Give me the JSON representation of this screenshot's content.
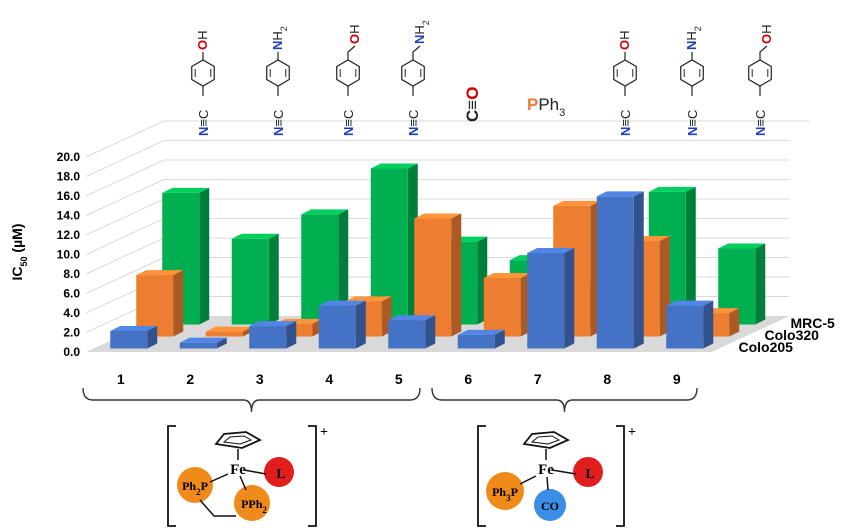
{
  "chart_data": {
    "type": "bar",
    "subtype": "3d-grouped",
    "ylabel": "IC50 (µM)",
    "ylabel_main": "IC",
    "ylabel_sub": "50",
    "ylabel_unit": " (µM)",
    "ylim": [
      0,
      20
    ],
    "yticks": [
      "0.0",
      "2.0",
      "4.0",
      "6.0",
      "8.0",
      "10.0",
      "12.0",
      "14.0",
      "16.0",
      "18.0",
      "20.0"
    ],
    "categories": [
      "1",
      "2",
      "3",
      "4",
      "5",
      "6",
      "7",
      "8",
      "9"
    ],
    "series": [
      {
        "name": "Colo205",
        "color": "#4472C4",
        "values": [
          1.8,
          0.6,
          2.3,
          4.4,
          2.9,
          1.4,
          9.8,
          15.6,
          4.4
        ]
      },
      {
        "name": "Colo320",
        "color": "#ED7D31",
        "values": [
          6.3,
          0.5,
          1.3,
          3.6,
          12.1,
          6.0,
          13.4,
          9.8,
          2.4
        ]
      },
      {
        "name": "MRC-5",
        "color": "#00B050",
        "values": [
          13.5,
          8.8,
          11.3,
          16.0,
          8.5,
          6.6,
          3.6,
          13.6,
          7.8
        ]
      }
    ],
    "groups": [
      {
        "label_top": "Fe",
        "ligand": "L",
        "charge": "+",
        "phos": "Ph2P",
        "phos2": "PPh2",
        "categories": [
          "1",
          "2",
          "3",
          "4",
          "5"
        ]
      },
      {
        "label_top": "Fe",
        "ligand": "L",
        "charge": "+",
        "phos": "Ph3P",
        "co": "CO",
        "categories": [
          "6",
          "7",
          "8",
          "9"
        ]
      }
    ],
    "ligands": [
      {
        "kind": "phenol-nitrile",
        "top": "OH"
      },
      {
        "kind": "aniline-nitrile",
        "top": "NH2"
      },
      {
        "kind": "benzylalcohol-nitrile",
        "top": "OH"
      },
      {
        "kind": "benzylamine-nitrile",
        "top": "NH2"
      },
      {
        "kind": "carbonyl",
        "text": "C≡O"
      },
      {
        "kind": "phosphine",
        "text": "PPh3"
      },
      {
        "kind": "phenol-nitrile",
        "top": "OH"
      },
      {
        "kind": "aniline-nitrile",
        "top": "NH2"
      },
      {
        "kind": "benzylalcohol-nitrile",
        "top": "OH"
      }
    ]
  }
}
